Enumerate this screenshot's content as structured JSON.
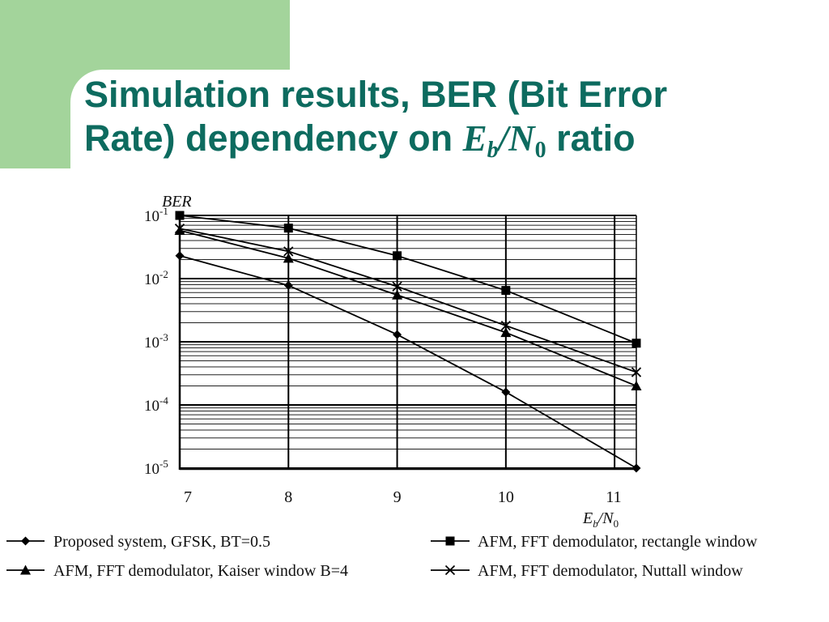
{
  "slide": {
    "title_line1": "Simulation results, BER (Bit Error",
    "title_line2_prefix": "Rate) dependency on ",
    "title_var_e": "E",
    "title_sub_b": "b",
    "title_slash": "/",
    "title_var_n": "N",
    "title_sub_0": "0",
    "title_suffix": " ratio",
    "accent_color": "#a3d49b",
    "title_color": "#0d6b5f"
  },
  "chart_data": {
    "type": "line",
    "title": "",
    "ylabel": "BER",
    "xlabel_main": "E",
    "xlabel_sub_b": "b",
    "xlabel_slash": "/N",
    "xlabel_sub_0": "0",
    "x_ticks": [
      7,
      8,
      9,
      10,
      11
    ],
    "x_tick_labels": [
      "7",
      "8",
      "9",
      "10",
      "11"
    ],
    "xlim": [
      7,
      11.2
    ],
    "y_scale": "log",
    "ylim": [
      1e-05,
      0.1
    ],
    "y_tick_labels": [
      {
        "base": "10",
        "exp": "-1"
      },
      {
        "base": "10",
        "exp": "-2"
      },
      {
        "base": "10",
        "exp": "-3"
      },
      {
        "base": "10",
        "exp": "-4"
      },
      {
        "base": "10",
        "exp": "-5"
      }
    ],
    "grid": true,
    "legend_position": "bottom",
    "series": [
      {
        "name": "Proposed system, GFSK, BT=0.5",
        "marker": "diamond",
        "x": [
          7,
          8,
          9,
          10,
          11.2
        ],
        "y": [
          0.023,
          0.0078,
          0.0013,
          0.00016,
          1e-05
        ]
      },
      {
        "name": "AFM, FFT demodulator, rectangle window",
        "marker": "square",
        "x": [
          7,
          8,
          9,
          10,
          11.2
        ],
        "y": [
          0.1,
          0.063,
          0.023,
          0.0065,
          0.00095
        ]
      },
      {
        "name": "AFM, FFT demodulator, Kaiser window B=4",
        "marker": "triangle",
        "x": [
          7,
          8,
          9,
          10,
          11.2
        ],
        "y": [
          0.058,
          0.021,
          0.0055,
          0.0014,
          0.0002
        ]
      },
      {
        "name": "AFM, FFT demodulator, Nuttall window",
        "marker": "x",
        "x": [
          7,
          8,
          9,
          10,
          11.2
        ],
        "y": [
          0.062,
          0.027,
          0.0075,
          0.0018,
          0.00033
        ]
      }
    ]
  }
}
